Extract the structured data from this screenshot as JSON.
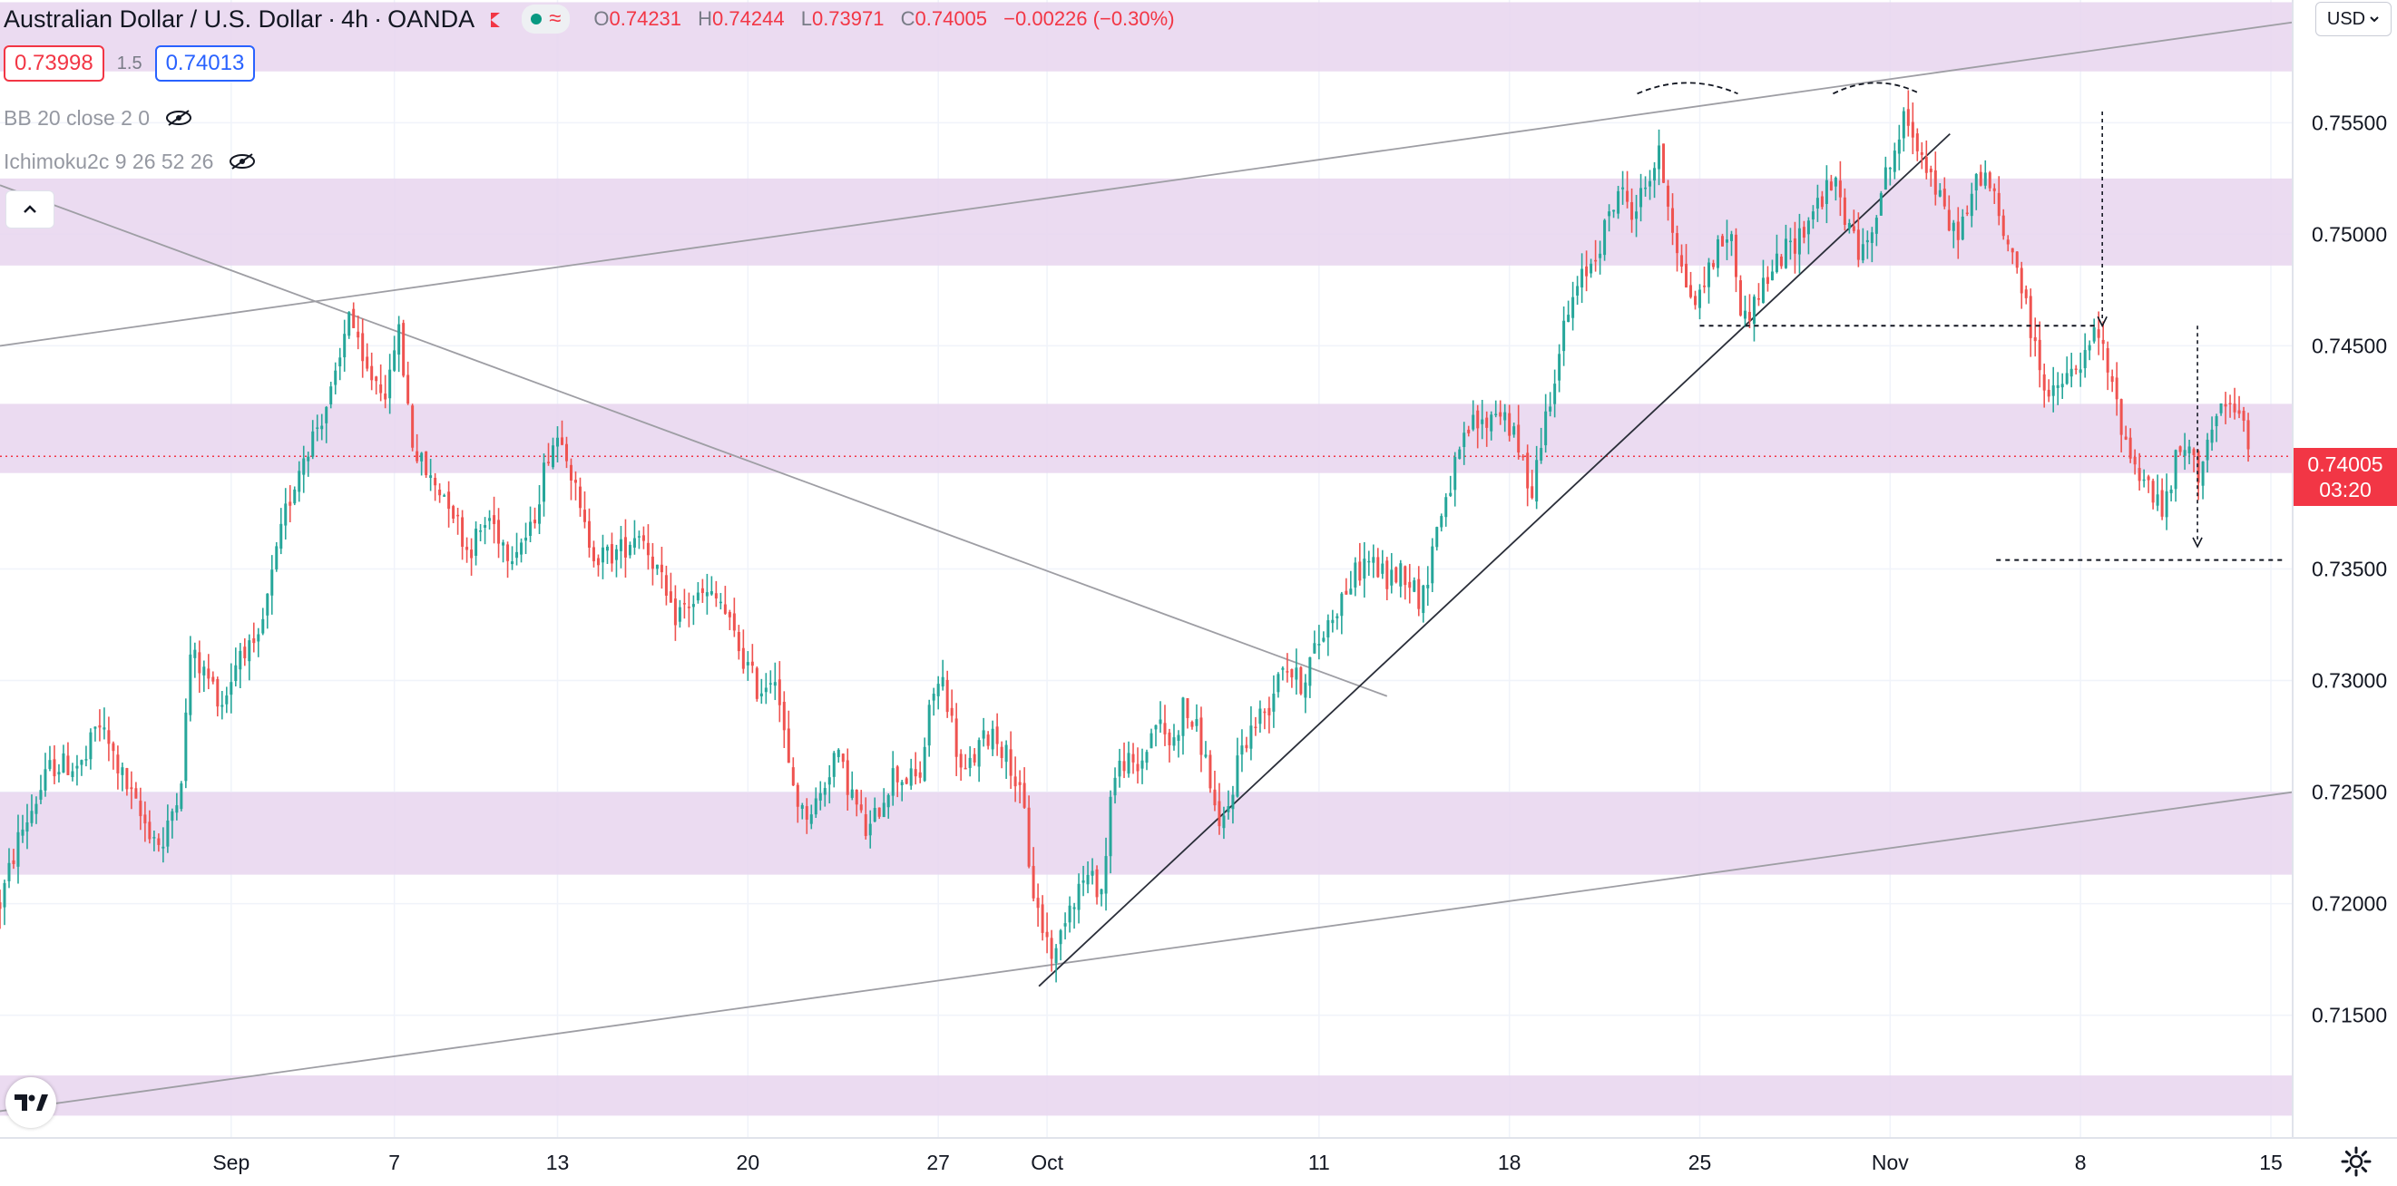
{
  "header": {
    "symbol_title": "Australian Dollar / U.S. Dollar",
    "interval": "4h",
    "exchange": "OANDA",
    "status_icon": "market-status-icon",
    "ohlc": {
      "open_key": "O",
      "open": "0.74231",
      "high_key": "H",
      "high": "0.74244",
      "low_key": "L",
      "low": "0.73971",
      "close_key": "C",
      "close": "0.74005",
      "change": "−0.00226 (−0.30%)"
    }
  },
  "quote": {
    "bid": "0.73998",
    "spread": "1.5",
    "ask": "0.74013"
  },
  "indicators": [
    {
      "label": "BB 20 close 2 0",
      "icon": "eye-crossed-icon"
    },
    {
      "label": "Ichimoku2c 9 26 52 26",
      "icon": "eye-crossed-icon"
    }
  ],
  "currency_button": "USD",
  "last_price_tag": {
    "price": "0.74005",
    "countdown": "03:20"
  },
  "colors": {
    "up": "#26a69a",
    "down": "#ef5350",
    "zone": "#e8d5ee",
    "line": "#9e9ea4",
    "trend": "#2a2e39",
    "last": "#f23645"
  },
  "chart_data": {
    "type": "candlestick",
    "instrument": "AUD/USD",
    "timeframe": "4h",
    "y_axis": {
      "range": [
        0.7095,
        0.7605
      ],
      "ticks": [
        "0.75500",
        "0.75000",
        "0.74500",
        "0.74000",
        "0.73500",
        "0.73000",
        "0.72500",
        "0.72000",
        "0.71500"
      ]
    },
    "x_axis": {
      "ticks": [
        {
          "label": "Sep",
          "day": 1
        },
        {
          "label": "7",
          "day": 7
        },
        {
          "label": "13",
          "day": 13
        },
        {
          "label": "20",
          "day": 20
        },
        {
          "label": "27",
          "day": 27
        },
        {
          "label": "Oct",
          "day": 31
        },
        {
          "label": "11",
          "day": 41
        },
        {
          "label": "18",
          "day": 48
        },
        {
          "label": "25",
          "day": 55
        },
        {
          "label": "Nov",
          "day": 62
        },
        {
          "label": "8",
          "day": 69
        },
        {
          "label": "15",
          "day": 76
        }
      ]
    },
    "visible_range_days": [
      -7.5,
      76.8
    ],
    "last_price": 0.74005,
    "zones": [
      {
        "from": 0.7573,
        "to": 0.7604
      },
      {
        "from": 0.7486,
        "to": 0.7525
      },
      {
        "from": 0.7393,
        "to": 0.7424
      },
      {
        "from": 0.7213,
        "to": 0.725
      },
      {
        "from": 0.7105,
        "to": 0.7123
      }
    ],
    "trendlines": [
      {
        "from": [
          -7.5,
          0.745
        ],
        "to": [
          76.8,
          0.7595
        ],
        "style": "thin-gray"
      },
      {
        "from": [
          -7.5,
          0.7107
        ],
        "to": [
          76.8,
          0.725
        ],
        "style": "thin-gray"
      },
      {
        "from": [
          -7.5,
          0.7522
        ],
        "to": [
          43.5,
          0.7293
        ],
        "style": "thin-gray"
      },
      {
        "from": [
          30.7,
          0.7163
        ],
        "to": [
          64.2,
          0.7545
        ],
        "style": "thin-dark"
      }
    ],
    "dashed_levels": [
      {
        "from": 55.0,
        "to": 69.6,
        "price": 0.7459
      },
      {
        "from": 65.9,
        "to": 76.5,
        "price": 0.7354
      }
    ],
    "arrows": [
      {
        "day": 69.8,
        "from": 0.7555,
        "to": 0.7459
      },
      {
        "day": 73.3,
        "from": 0.7459,
        "to": 0.736
      }
    ],
    "arcs": [
      {
        "x1": 52.7,
        "x2": 56.4,
        "price": 0.7563
      },
      {
        "x1": 59.9,
        "x2": 63.1,
        "price": 0.7563
      }
    ],
    "waypoints": [
      [
        -7.5,
        0.72
      ],
      [
        -6.8,
        0.723
      ],
      [
        -5.6,
        0.7262
      ],
      [
        -4.4,
        0.7262
      ],
      [
        -3.9,
        0.7282
      ],
      [
        -2.4,
        0.724
      ],
      [
        -1.5,
        0.7225
      ],
      [
        -0.8,
        0.726
      ],
      [
        -0.5,
        0.7312
      ],
      [
        0.2,
        0.73
      ],
      [
        0.7,
        0.729
      ],
      [
        1.4,
        0.7317
      ],
      [
        1.9,
        0.731
      ],
      [
        2.4,
        0.734
      ],
      [
        3.0,
        0.7375
      ],
      [
        3.6,
        0.74
      ],
      [
        4.2,
        0.7415
      ],
      [
        4.8,
        0.7432
      ],
      [
        5.1,
        0.7448
      ],
      [
        5.3,
        0.747
      ],
      [
        5.8,
        0.744
      ],
      [
        6.8,
        0.743
      ],
      [
        7.1,
        0.7462
      ],
      [
        7.7,
        0.7404
      ],
      [
        8.3,
        0.739
      ],
      [
        9.0,
        0.7382
      ],
      [
        9.7,
        0.7358
      ],
      [
        10.5,
        0.7373
      ],
      [
        11.2,
        0.7358
      ],
      [
        12.0,
        0.7366
      ],
      [
        12.7,
        0.7405
      ],
      [
        13.2,
        0.7412
      ],
      [
        13.9,
        0.737
      ],
      [
        14.5,
        0.7355
      ],
      [
        15.3,
        0.7358
      ],
      [
        16.0,
        0.7368
      ],
      [
        16.6,
        0.7352
      ],
      [
        17.2,
        0.7328
      ],
      [
        17.9,
        0.7335
      ],
      [
        18.4,
        0.7338
      ],
      [
        19.0,
        0.7335
      ],
      [
        19.4,
        0.7322
      ],
      [
        19.9,
        0.7308
      ],
      [
        20.4,
        0.7295
      ],
      [
        21.0,
        0.7305
      ],
      [
        21.5,
        0.726
      ],
      [
        22.0,
        0.724
      ],
      [
        22.6,
        0.7246
      ],
      [
        23.2,
        0.7268
      ],
      [
        23.8,
        0.725
      ],
      [
        24.4,
        0.723
      ],
      [
        25.3,
        0.7258
      ],
      [
        26.3,
        0.7255
      ],
      [
        26.8,
        0.7295
      ],
      [
        27.2,
        0.73
      ],
      [
        27.9,
        0.7255
      ],
      [
        28.5,
        0.727
      ],
      [
        29.0,
        0.7278
      ],
      [
        29.7,
        0.7262
      ],
      [
        30.2,
        0.7238
      ],
      [
        30.4,
        0.721
      ],
      [
        30.8,
        0.719
      ],
      [
        31.3,
        0.7175
      ],
      [
        31.7,
        0.7198
      ],
      [
        32.4,
        0.7212
      ],
      [
        33.1,
        0.7206
      ],
      [
        33.3,
        0.725
      ],
      [
        33.8,
        0.7265
      ],
      [
        34.3,
        0.7258
      ],
      [
        35.0,
        0.7282
      ],
      [
        35.6,
        0.727
      ],
      [
        36.0,
        0.7288
      ],
      [
        36.6,
        0.7275
      ],
      [
        37.1,
        0.725
      ],
      [
        37.3,
        0.7228
      ],
      [
        37.7,
        0.7245
      ],
      [
        38.1,
        0.727
      ],
      [
        38.6,
        0.728
      ],
      [
        39.2,
        0.729
      ],
      [
        39.6,
        0.731
      ],
      [
        40.3,
        0.7298
      ],
      [
        40.9,
        0.7315
      ],
      [
        41.5,
        0.733
      ],
      [
        42.2,
        0.7345
      ],
      [
        42.8,
        0.7355
      ],
      [
        43.5,
        0.7345
      ],
      [
        44.1,
        0.735
      ],
      [
        44.8,
        0.7335
      ],
      [
        45.2,
        0.7362
      ],
      [
        45.6,
        0.738
      ],
      [
        46.1,
        0.7398
      ],
      [
        46.6,
        0.7415
      ],
      [
        47.1,
        0.7414
      ],
      [
        47.5,
        0.7422
      ],
      [
        47.9,
        0.7418
      ],
      [
        48.4,
        0.74
      ],
      [
        48.8,
        0.7385
      ],
      [
        49.2,
        0.741
      ],
      [
        49.6,
        0.7435
      ],
      [
        50.1,
        0.7462
      ],
      [
        50.6,
        0.7478
      ],
      [
        51.1,
        0.749
      ],
      [
        51.6,
        0.7505
      ],
      [
        52.0,
        0.752
      ],
      [
        52.6,
        0.751
      ],
      [
        53.1,
        0.7525
      ],
      [
        53.5,
        0.7535
      ],
      [
        54.0,
        0.7505
      ],
      [
        54.4,
        0.748
      ],
      [
        54.9,
        0.7468
      ],
      [
        55.4,
        0.7488
      ],
      [
        56.1,
        0.7502
      ],
      [
        56.6,
        0.746
      ],
      [
        57.2,
        0.7475
      ],
      [
        58.0,
        0.749
      ],
      [
        58.7,
        0.75
      ],
      [
        59.4,
        0.7516
      ],
      [
        60.0,
        0.7522
      ],
      [
        60.5,
        0.7502
      ],
      [
        61.0,
        0.749
      ],
      [
        61.6,
        0.7518
      ],
      [
        62.1,
        0.7535
      ],
      [
        62.5,
        0.755
      ],
      [
        62.9,
        0.7545
      ],
      [
        63.4,
        0.753
      ],
      [
        63.9,
        0.7512
      ],
      [
        64.3,
        0.75
      ],
      [
        64.8,
        0.7508
      ],
      [
        65.3,
        0.7528
      ],
      [
        65.7,
        0.7522
      ],
      [
        66.1,
        0.75
      ],
      [
        66.6,
        0.749
      ],
      [
        67.1,
        0.746
      ],
      [
        67.5,
        0.7442
      ],
      [
        67.9,
        0.7425
      ],
      [
        68.3,
        0.7433
      ],
      [
        68.8,
        0.7438
      ],
      [
        69.2,
        0.7445
      ],
      [
        69.6,
        0.7458
      ],
      [
        70.0,
        0.7438
      ],
      [
        70.4,
        0.742
      ],
      [
        70.9,
        0.7398
      ],
      [
        71.3,
        0.7392
      ],
      [
        71.7,
        0.7382
      ],
      [
        72.1,
        0.7375
      ],
      [
        72.5,
        0.7398
      ],
      [
        72.9,
        0.7405
      ],
      [
        73.3,
        0.7392
      ],
      [
        73.7,
        0.741
      ],
      [
        74.1,
        0.7418
      ],
      [
        74.5,
        0.7422
      ],
      [
        74.9,
        0.7418
      ],
      [
        75.2,
        0.74
      ]
    ]
  }
}
